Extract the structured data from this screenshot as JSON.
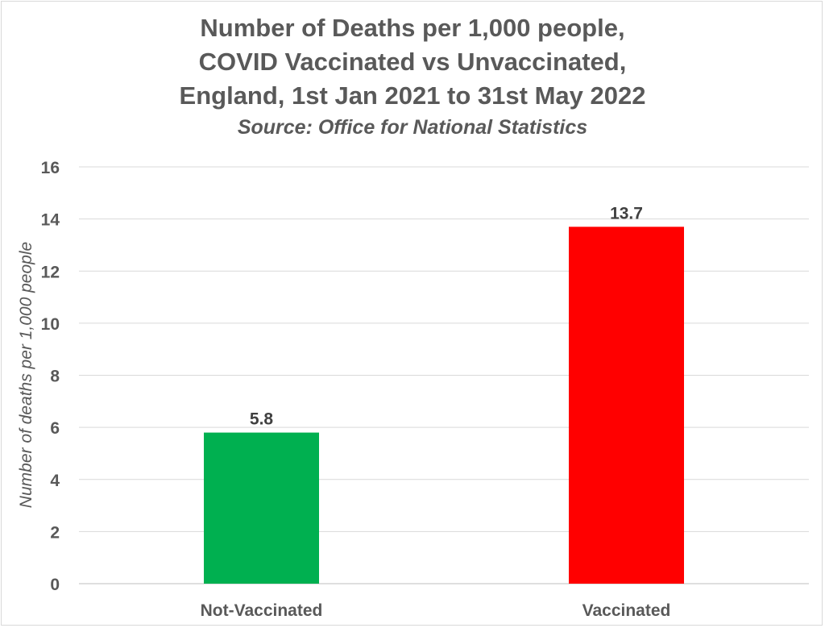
{
  "chart_data": {
    "type": "bar",
    "title_lines": [
      "Number of Deaths per 1,000 people,",
      "COVID Vaccinated vs Unvaccinated,",
      "England, 1st Jan 2021 to 31st May 2022"
    ],
    "subtitle": "Source: Office for National Statistics",
    "ylabel": "Number of deaths per 1,000 people",
    "xlabel": "",
    "categories": [
      "Not-Vaccinated",
      "Vaccinated"
    ],
    "values": [
      5.8,
      13.7
    ],
    "data_labels": [
      "5.8",
      "13.7"
    ],
    "colors": [
      "#00b050",
      "#ff0000"
    ],
    "ylim": [
      0,
      16
    ],
    "yticks": [
      0,
      2,
      4,
      6,
      8,
      10,
      12,
      14,
      16
    ],
    "grid": true,
    "legend": "none"
  }
}
